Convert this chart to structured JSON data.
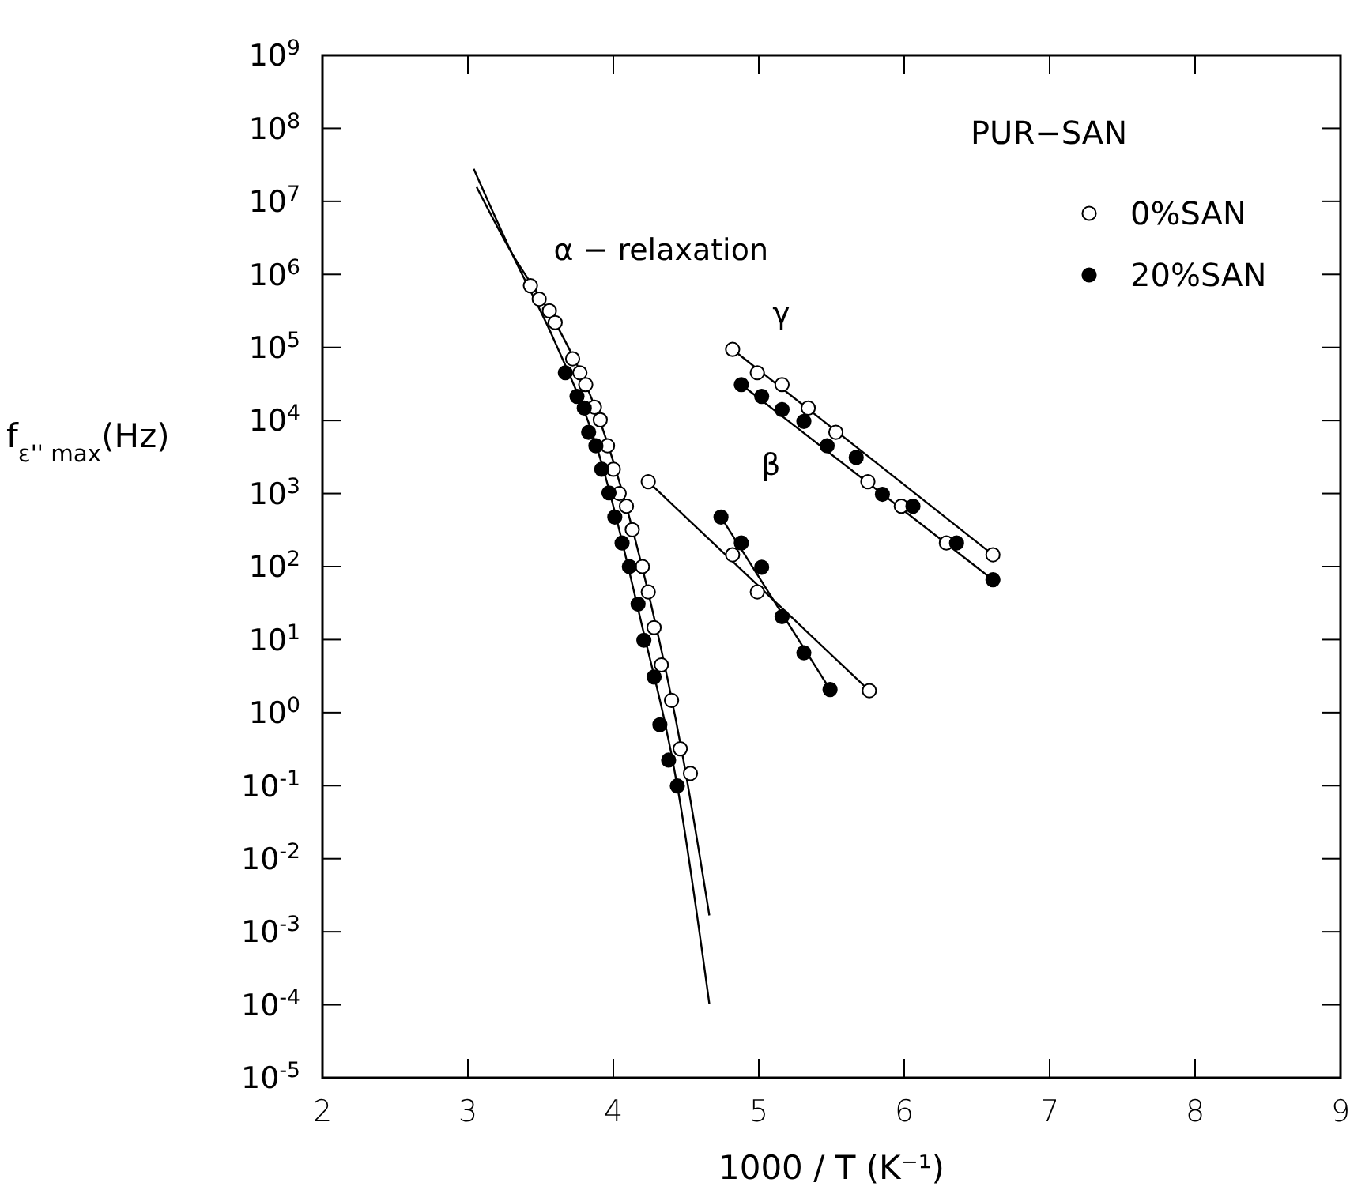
{
  "chart_data": {
    "type": "scatter",
    "xlabel": "1000 / T   (K⁻¹)",
    "ylabel": "f$_{ε'' max}$(Hz)",
    "legend_title": "PUR−SAN",
    "legend": "top right",
    "marker": "circle",
    "line_style": "solid",
    "log": "y",
    "grid": false,
    "xlim": [
      2,
      9
    ],
    "xticks": [
      2,
      3,
      4,
      5,
      6,
      7,
      8,
      9
    ],
    "ylim": [
      1e-05,
      1000000000.0
    ],
    "yticks": [
      {
        "value": 1e-05,
        "label": "10$^{-5}$"
      },
      {
        "value": 0.0001,
        "label": "10$^{-4}$"
      },
      {
        "value": 0.001,
        "label": "10$^{-3}$"
      },
      {
        "value": 0.01,
        "label": "10$^{-2}$"
      },
      {
        "value": 0.1,
        "label": "10$^{-1}$"
      },
      {
        "value": 1,
        "label": "10$^{0}$"
      },
      {
        "value": 10,
        "label": "10$^{1}$"
      },
      {
        "value": 100,
        "label": "10$^{2}$"
      },
      {
        "value": 1000,
        "label": "10$^{3}$"
      },
      {
        "value": 10000.0,
        "label": "10$^{4}$"
      },
      {
        "value": 100000.0,
        "label": "10$^{5}$"
      },
      {
        "value": 1000000.0,
        "label": "10$^{6}$"
      },
      {
        "value": 10000000.0,
        "label": "10$^{7}$"
      },
      {
        "value": 100000000.0,
        "label": "10$^{8}$"
      },
      {
        "value": 1000000000.0,
        "label": "10$^{9}$"
      }
    ],
    "annotations": [
      "α − relaxation",
      "γ",
      "β"
    ],
    "series": [
      {
        "type": "line",
        "marker": "none",
        "color": "#000000",
        "x": [
          3.06,
          3.3,
          3.59,
          3.89,
          4.19,
          4.48,
          4.66
        ],
        "values": [
          15700000,
          1980000,
          241000,
          12400,
          114,
          0.235,
          0.00167
        ]
      },
      {
        "type": "line",
        "marker": "none",
        "color": "#000000",
        "x": [
          3.04,
          3.3,
          3.59,
          3.89,
          4.19,
          4.44,
          4.66
        ],
        "values": [
          27800000,
          1980000,
          130000,
          4090,
          17.8,
          0.099,
          0.000103
        ]
      },
      {
        "type": "line",
        "marker": "none",
        "color": "#000000",
        "x": [
          4.82,
          6.61
        ],
        "values": [
          94000,
          145
        ]
      },
      {
        "type": "line",
        "marker": "none",
        "color": "#000000",
        "x": [
          4.88,
          6.61
        ],
        "values": [
          31000,
          66
        ]
      },
      {
        "type": "line",
        "marker": "none",
        "color": "#000000",
        "x": [
          4.24,
          5.76
        ],
        "values": [
          1450,
          2.0
        ]
      },
      {
        "type": "line",
        "marker": "none",
        "color": "#000000",
        "x": [
          4.74,
          5.49
        ],
        "values": [
          476,
          2.07
        ]
      },
      {
        "name": "0%SAN",
        "color": "#ffffff",
        "x": [
          3.43,
          3.49,
          3.56,
          3.6,
          3.72,
          3.77,
          3.81,
          3.87,
          3.91,
          3.96,
          4.0,
          4.04,
          4.09,
          4.13,
          4.2,
          4.24,
          4.28,
          4.33,
          4.4,
          4.46,
          4.53,
          4.24,
          4.82,
          4.99,
          5.76,
          4.82,
          4.99,
          5.16,
          5.34,
          5.53,
          5.75,
          5.98,
          6.29,
          6.61
        ],
        "values": [
          700000,
          459000,
          317000,
          219000,
          70000,
          45000,
          31000,
          15200,
          10200,
          4500,
          2150,
          1000,
          670,
          320,
          100,
          45,
          14.6,
          4.5,
          1.47,
          0.32,
          0.147,
          1450,
          145,
          45,
          2.0,
          94000,
          45000,
          31000,
          14800,
          6900,
          1450,
          670,
          210,
          145
        ]
      },
      {
        "name": "20%SAN",
        "color": "#000000",
        "x": [
          3.67,
          3.75,
          3.8,
          3.83,
          3.88,
          3.92,
          3.97,
          4.01,
          4.06,
          4.11,
          4.17,
          4.21,
          4.28,
          4.32,
          4.38,
          4.44,
          4.74,
          4.88,
          5.02,
          5.16,
          5.31,
          5.49,
          4.88,
          5.02,
          5.16,
          5.31,
          5.47,
          5.67,
          5.85,
          6.06,
          6.36,
          6.61
        ],
        "values": [
          45000,
          21400,
          14800,
          6900,
          4500,
          2150,
          1020,
          476,
          210,
          100,
          30.6,
          9.8,
          3.07,
          0.68,
          0.224,
          0.099,
          476,
          210,
          98,
          20.6,
          6.6,
          2.07,
          31000,
          21400,
          14100,
          9700,
          4500,
          3120,
          975,
          670,
          210,
          66
        ]
      }
    ]
  }
}
